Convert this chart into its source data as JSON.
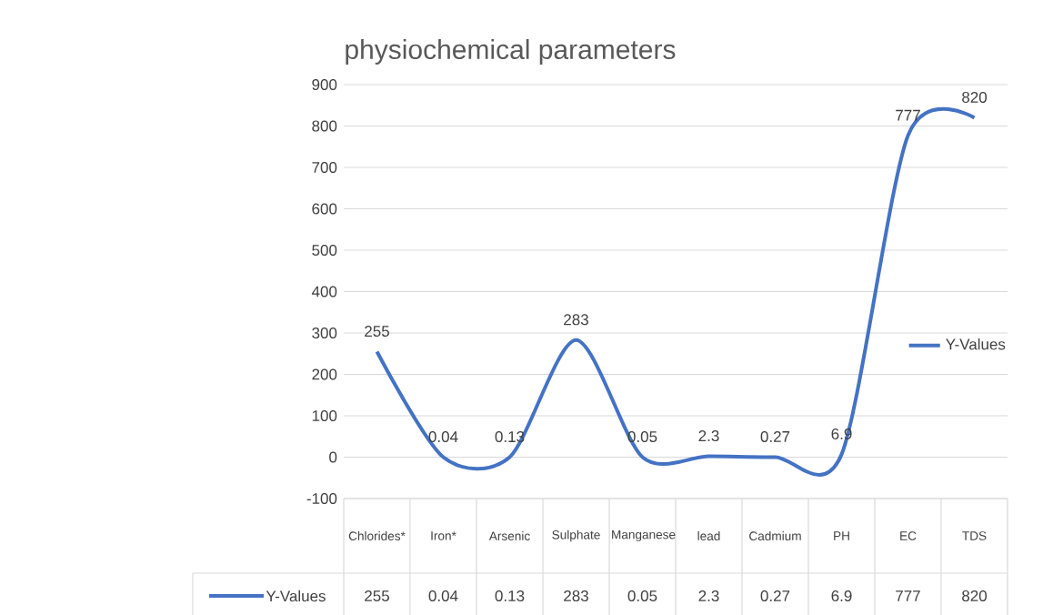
{
  "chart_data": {
    "type": "line",
    "title": "physiochemical parameters",
    "categories": [
      "Chlorides*",
      "Iron*",
      "Arsenic",
      "Sulphate",
      "Manganese",
      "lead",
      "Cadmium",
      "PH",
      "EC",
      "TDS"
    ],
    "series": [
      {
        "name": "Y-Values",
        "color": "#4472c4",
        "values": [
          255,
          0.04,
          0.13,
          283,
          0.05,
          2.3,
          0.27,
          6.9,
          777,
          820
        ],
        "value_labels": [
          "255",
          "0.04",
          "0.13",
          "283",
          "0.05",
          "2.3",
          "0.27",
          "6.9",
          "777",
          "820"
        ]
      }
    ],
    "ylim": [
      -100,
      900
    ],
    "yticks": [
      -100,
      0,
      100,
      200,
      300,
      400,
      500,
      600,
      700,
      800,
      900
    ],
    "grid": "y",
    "legend": "right"
  }
}
